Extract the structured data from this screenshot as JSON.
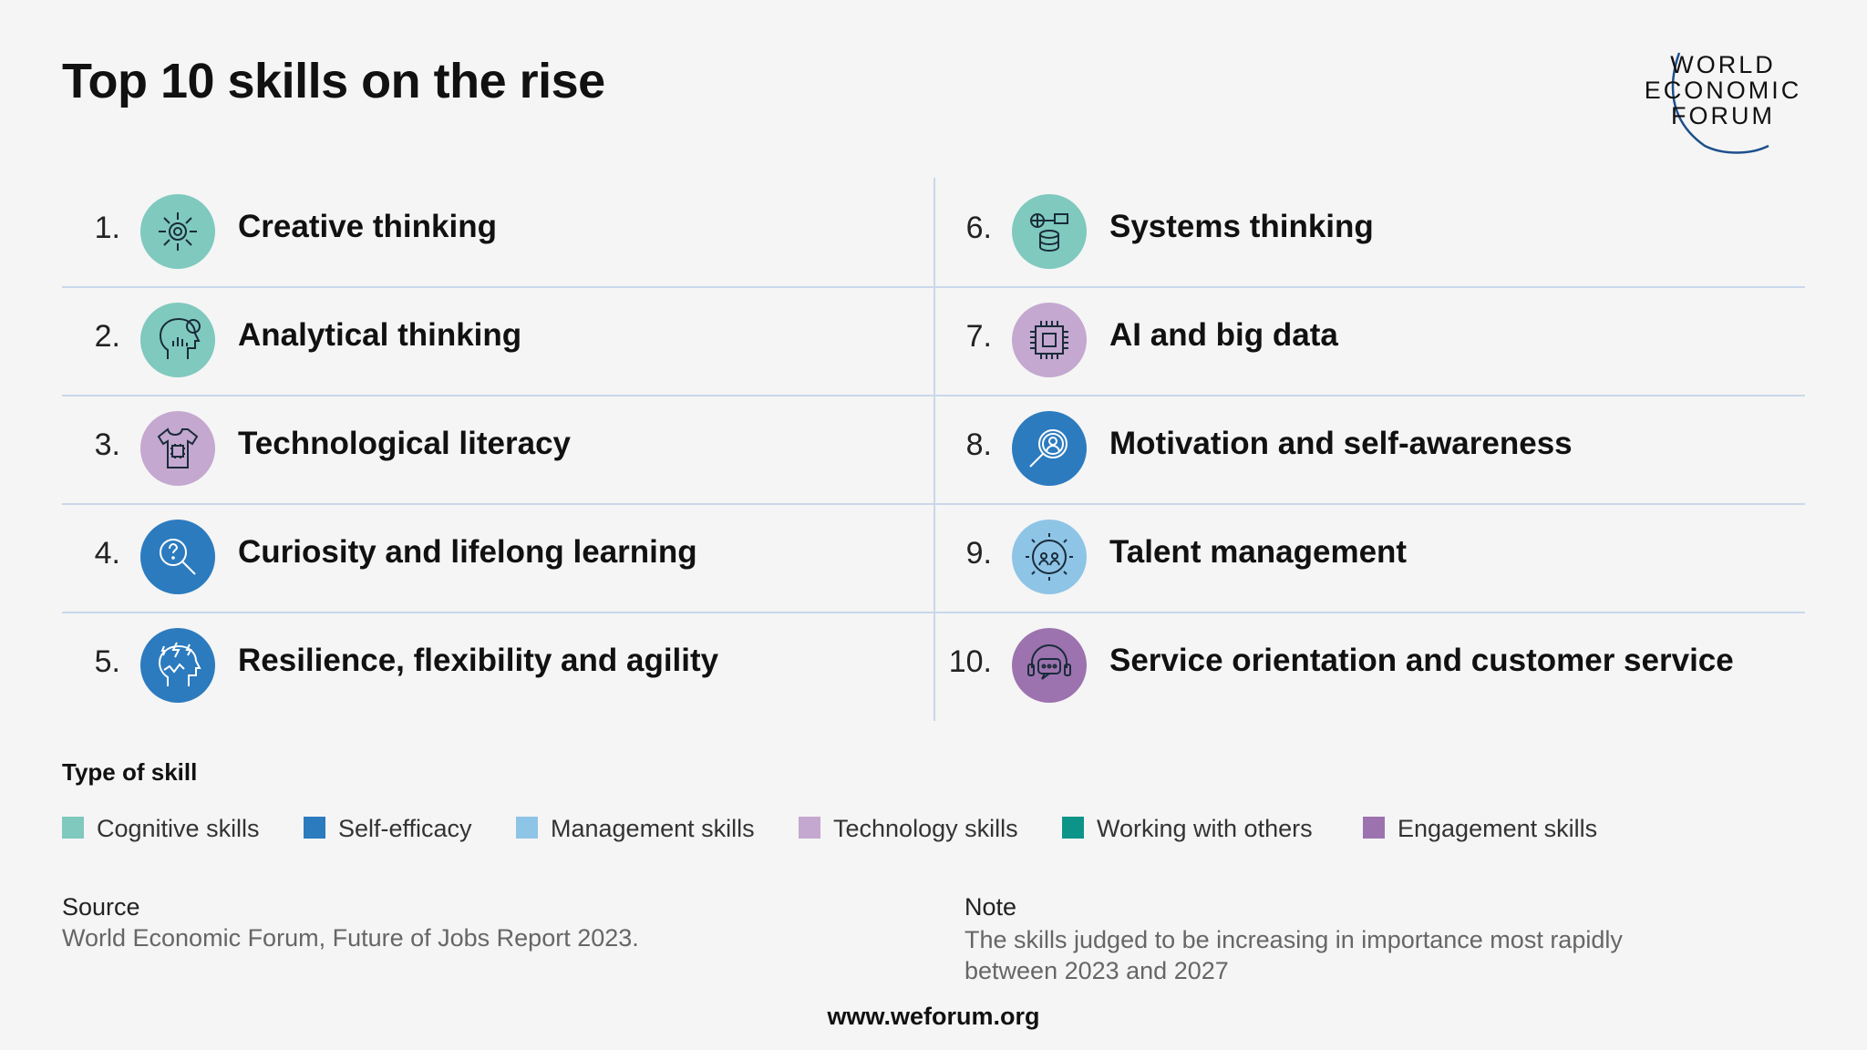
{
  "title": "Top 10 skills on the rise",
  "logo": {
    "line1": "WORLD",
    "line2": "ECONOMIC",
    "line3": "FORUM"
  },
  "skills": [
    {
      "rank": "1.",
      "label": "Creative thinking",
      "type": "Cognitive skills",
      "icon": "head-gear-icon",
      "color": "#7fc9be"
    },
    {
      "rank": "2.",
      "label": "Analytical thinking",
      "type": "Cognitive skills",
      "icon": "head-chart-icon",
      "color": "#7fc9be"
    },
    {
      "rank": "3.",
      "label": "Technological literacy",
      "type": "Technology skills",
      "icon": "shirt-chip-icon",
      "color": "#c4a8cf"
    },
    {
      "rank": "4.",
      "label": "Curiosity and lifelong learning",
      "type": "Self-efficacy",
      "icon": "magnifier-question-icon",
      "color": "#2c7bbf"
    },
    {
      "rank": "5.",
      "label": "Resilience, flexibility and agility",
      "type": "Self-efficacy",
      "icon": "head-lightning-icon",
      "color": "#2c7bbf"
    },
    {
      "rank": "6.",
      "label": "Systems thinking",
      "type": "Cognitive skills",
      "icon": "network-database-icon",
      "color": "#7fc9be"
    },
    {
      "rank": "7.",
      "label": "AI and big data",
      "type": "Technology skills",
      "icon": "ai-chip-icon",
      "color": "#c4a8cf"
    },
    {
      "rank": "8.",
      "label": "Motivation and self-awareness",
      "type": "Self-efficacy",
      "icon": "magnifier-person-icon",
      "color": "#2c7bbf"
    },
    {
      "rank": "9.",
      "label": "Talent management",
      "type": "Management skills",
      "icon": "gear-people-icon",
      "color": "#8ec4e6"
    },
    {
      "rank": "10.",
      "label": "Service orientation and customer service",
      "type": "Engagement skills",
      "icon": "headset-chat-icon",
      "color": "#9c73ae"
    }
  ],
  "legend": {
    "title": "Type of skill",
    "items": [
      {
        "label": "Cognitive skills",
        "color": "#7fc9be"
      },
      {
        "label": "Self-efficacy",
        "color": "#2c7bbf"
      },
      {
        "label": "Management skills",
        "color": "#8ec4e6"
      },
      {
        "label": "Technology skills",
        "color": "#c4a8cf"
      },
      {
        "label": "Working with others",
        "color": "#0d9488"
      },
      {
        "label": "Engagement skills",
        "color": "#9c73ae"
      }
    ]
  },
  "source": {
    "label": "Source",
    "text": "World Economic Forum, Future of Jobs Report 2023."
  },
  "note": {
    "label": "Note",
    "text": "The skills judged to be increasing in importance most rapidly between 2023 and 2027"
  },
  "footer": "www.weforum.org"
}
